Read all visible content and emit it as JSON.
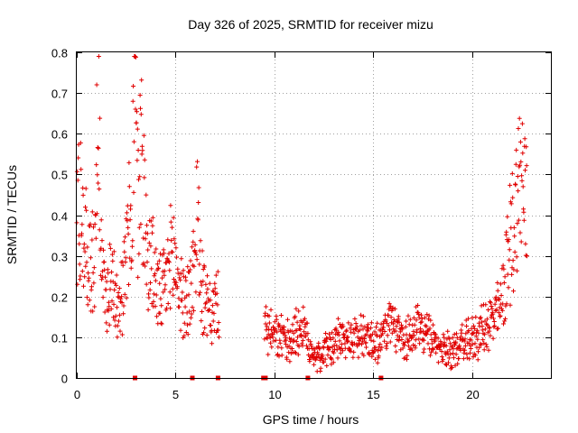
{
  "chart_data": {
    "type": "scatter",
    "title": "Day 326 of 2025, SRMTID for receiver mizu",
    "xlabel": "GPS time / hours",
    "ylabel": "SRMTID / TECUs",
    "xlim": [
      0,
      24
    ],
    "ylim": [
      0,
      0.8
    ],
    "xticks": [
      0,
      5,
      10,
      15,
      20
    ],
    "yticks": [
      0,
      0.1,
      0.2,
      0.3,
      0.4,
      0.5,
      0.6,
      0.7,
      0.8
    ],
    "grid": true,
    "marker": "+",
    "color": "#e00000",
    "gap_markers_x": [
      2.95,
      5.85,
      7.15,
      9.45,
      9.55,
      11.7,
      15.4
    ],
    "anchors": [
      [
        0.0,
        0.38
      ],
      [
        0.15,
        0.45
      ],
      [
        0.35,
        0.35
      ],
      [
        0.6,
        0.28
      ],
      [
        0.9,
        0.3
      ],
      [
        1.0,
        0.52
      ],
      [
        1.1,
        0.7
      ],
      [
        1.25,
        0.25
      ],
      [
        1.5,
        0.2
      ],
      [
        1.8,
        0.25
      ],
      [
        2.1,
        0.2
      ],
      [
        2.4,
        0.23
      ],
      [
        2.6,
        0.35
      ],
      [
        2.8,
        0.45
      ],
      [
        2.95,
        0.7
      ],
      [
        3.1,
        0.4
      ],
      [
        3.25,
        0.6
      ],
      [
        3.4,
        0.45
      ],
      [
        3.5,
        0.33
      ],
      [
        3.8,
        0.28
      ],
      [
        4.2,
        0.2
      ],
      [
        4.5,
        0.22
      ],
      [
        4.8,
        0.3
      ],
      [
        5.0,
        0.28
      ],
      [
        5.2,
        0.22
      ],
      [
        5.5,
        0.18
      ],
      [
        5.8,
        0.22
      ],
      [
        6.0,
        0.3
      ],
      [
        6.1,
        0.45
      ],
      [
        6.25,
        0.25
      ],
      [
        6.5,
        0.18
      ],
      [
        6.8,
        0.15
      ],
      [
        7.1,
        0.18
      ],
      [
        9.6,
        0.12
      ],
      [
        9.9,
        0.1
      ],
      [
        10.2,
        0.1
      ],
      [
        10.6,
        0.09
      ],
      [
        11.0,
        0.11
      ],
      [
        11.4,
        0.12
      ],
      [
        11.8,
        0.08
      ],
      [
        12.2,
        0.05
      ],
      [
        12.6,
        0.07
      ],
      [
        13.0,
        0.08
      ],
      [
        13.4,
        0.1
      ],
      [
        13.8,
        0.09
      ],
      [
        14.2,
        0.1
      ],
      [
        14.6,
        0.11
      ],
      [
        15.0,
        0.09
      ],
      [
        15.4,
        0.1
      ],
      [
        15.8,
        0.13
      ],
      [
        16.2,
        0.11
      ],
      [
        16.6,
        0.1
      ],
      [
        17.0,
        0.11
      ],
      [
        17.4,
        0.12
      ],
      [
        17.8,
        0.1
      ],
      [
        18.2,
        0.08
      ],
      [
        18.6,
        0.07
      ],
      [
        19.0,
        0.07
      ],
      [
        19.4,
        0.08
      ],
      [
        19.8,
        0.09
      ],
      [
        20.2,
        0.1
      ],
      [
        20.6,
        0.12
      ],
      [
        21.0,
        0.14
      ],
      [
        21.4,
        0.16
      ],
      [
        21.7,
        0.25
      ],
      [
        22.0,
        0.35
      ],
      [
        22.3,
        0.45
      ],
      [
        22.5,
        0.5
      ],
      [
        22.8,
        0.4
      ]
    ]
  }
}
